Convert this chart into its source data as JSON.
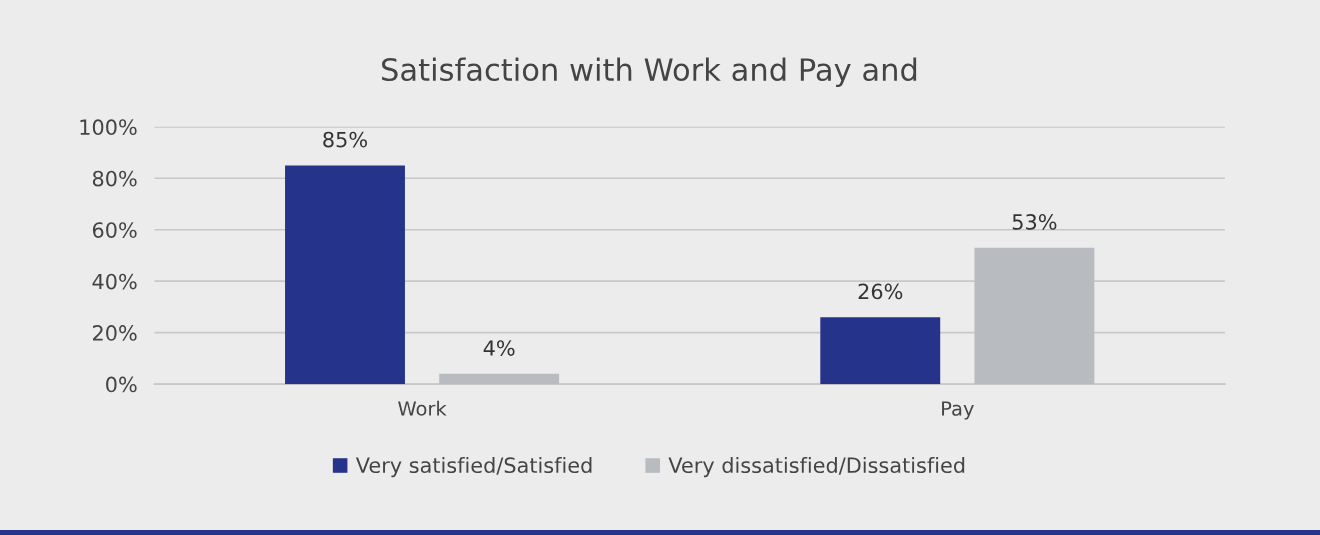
{
  "chart_data": {
    "type": "bar",
    "title": "Satisfaction with Work and Pay and",
    "categories": [
      "Work",
      "Pay"
    ],
    "series": [
      {
        "name": "Very satisfied/Satisfied",
        "color": "#25338a",
        "values": [
          85,
          26
        ],
        "value_labels": [
          "85%",
          "26%"
        ]
      },
      {
        "name": "Very dissatisfied/Dissatisfied",
        "color": "#b8bcc1",
        "values": [
          4,
          53
        ],
        "value_labels": [
          "4%",
          "53%"
        ]
      }
    ],
    "ylim": [
      0,
      100
    ],
    "yticks": [
      {
        "value": 0,
        "label": "0%"
      },
      {
        "value": 20,
        "label": "20%"
      },
      {
        "value": 40,
        "label": "40%"
      },
      {
        "value": 60,
        "label": "60%"
      },
      {
        "value": 80,
        "label": "80%"
      },
      {
        "value": 100,
        "label": "100%"
      }
    ],
    "grid": "y",
    "legend": "bottom"
  }
}
